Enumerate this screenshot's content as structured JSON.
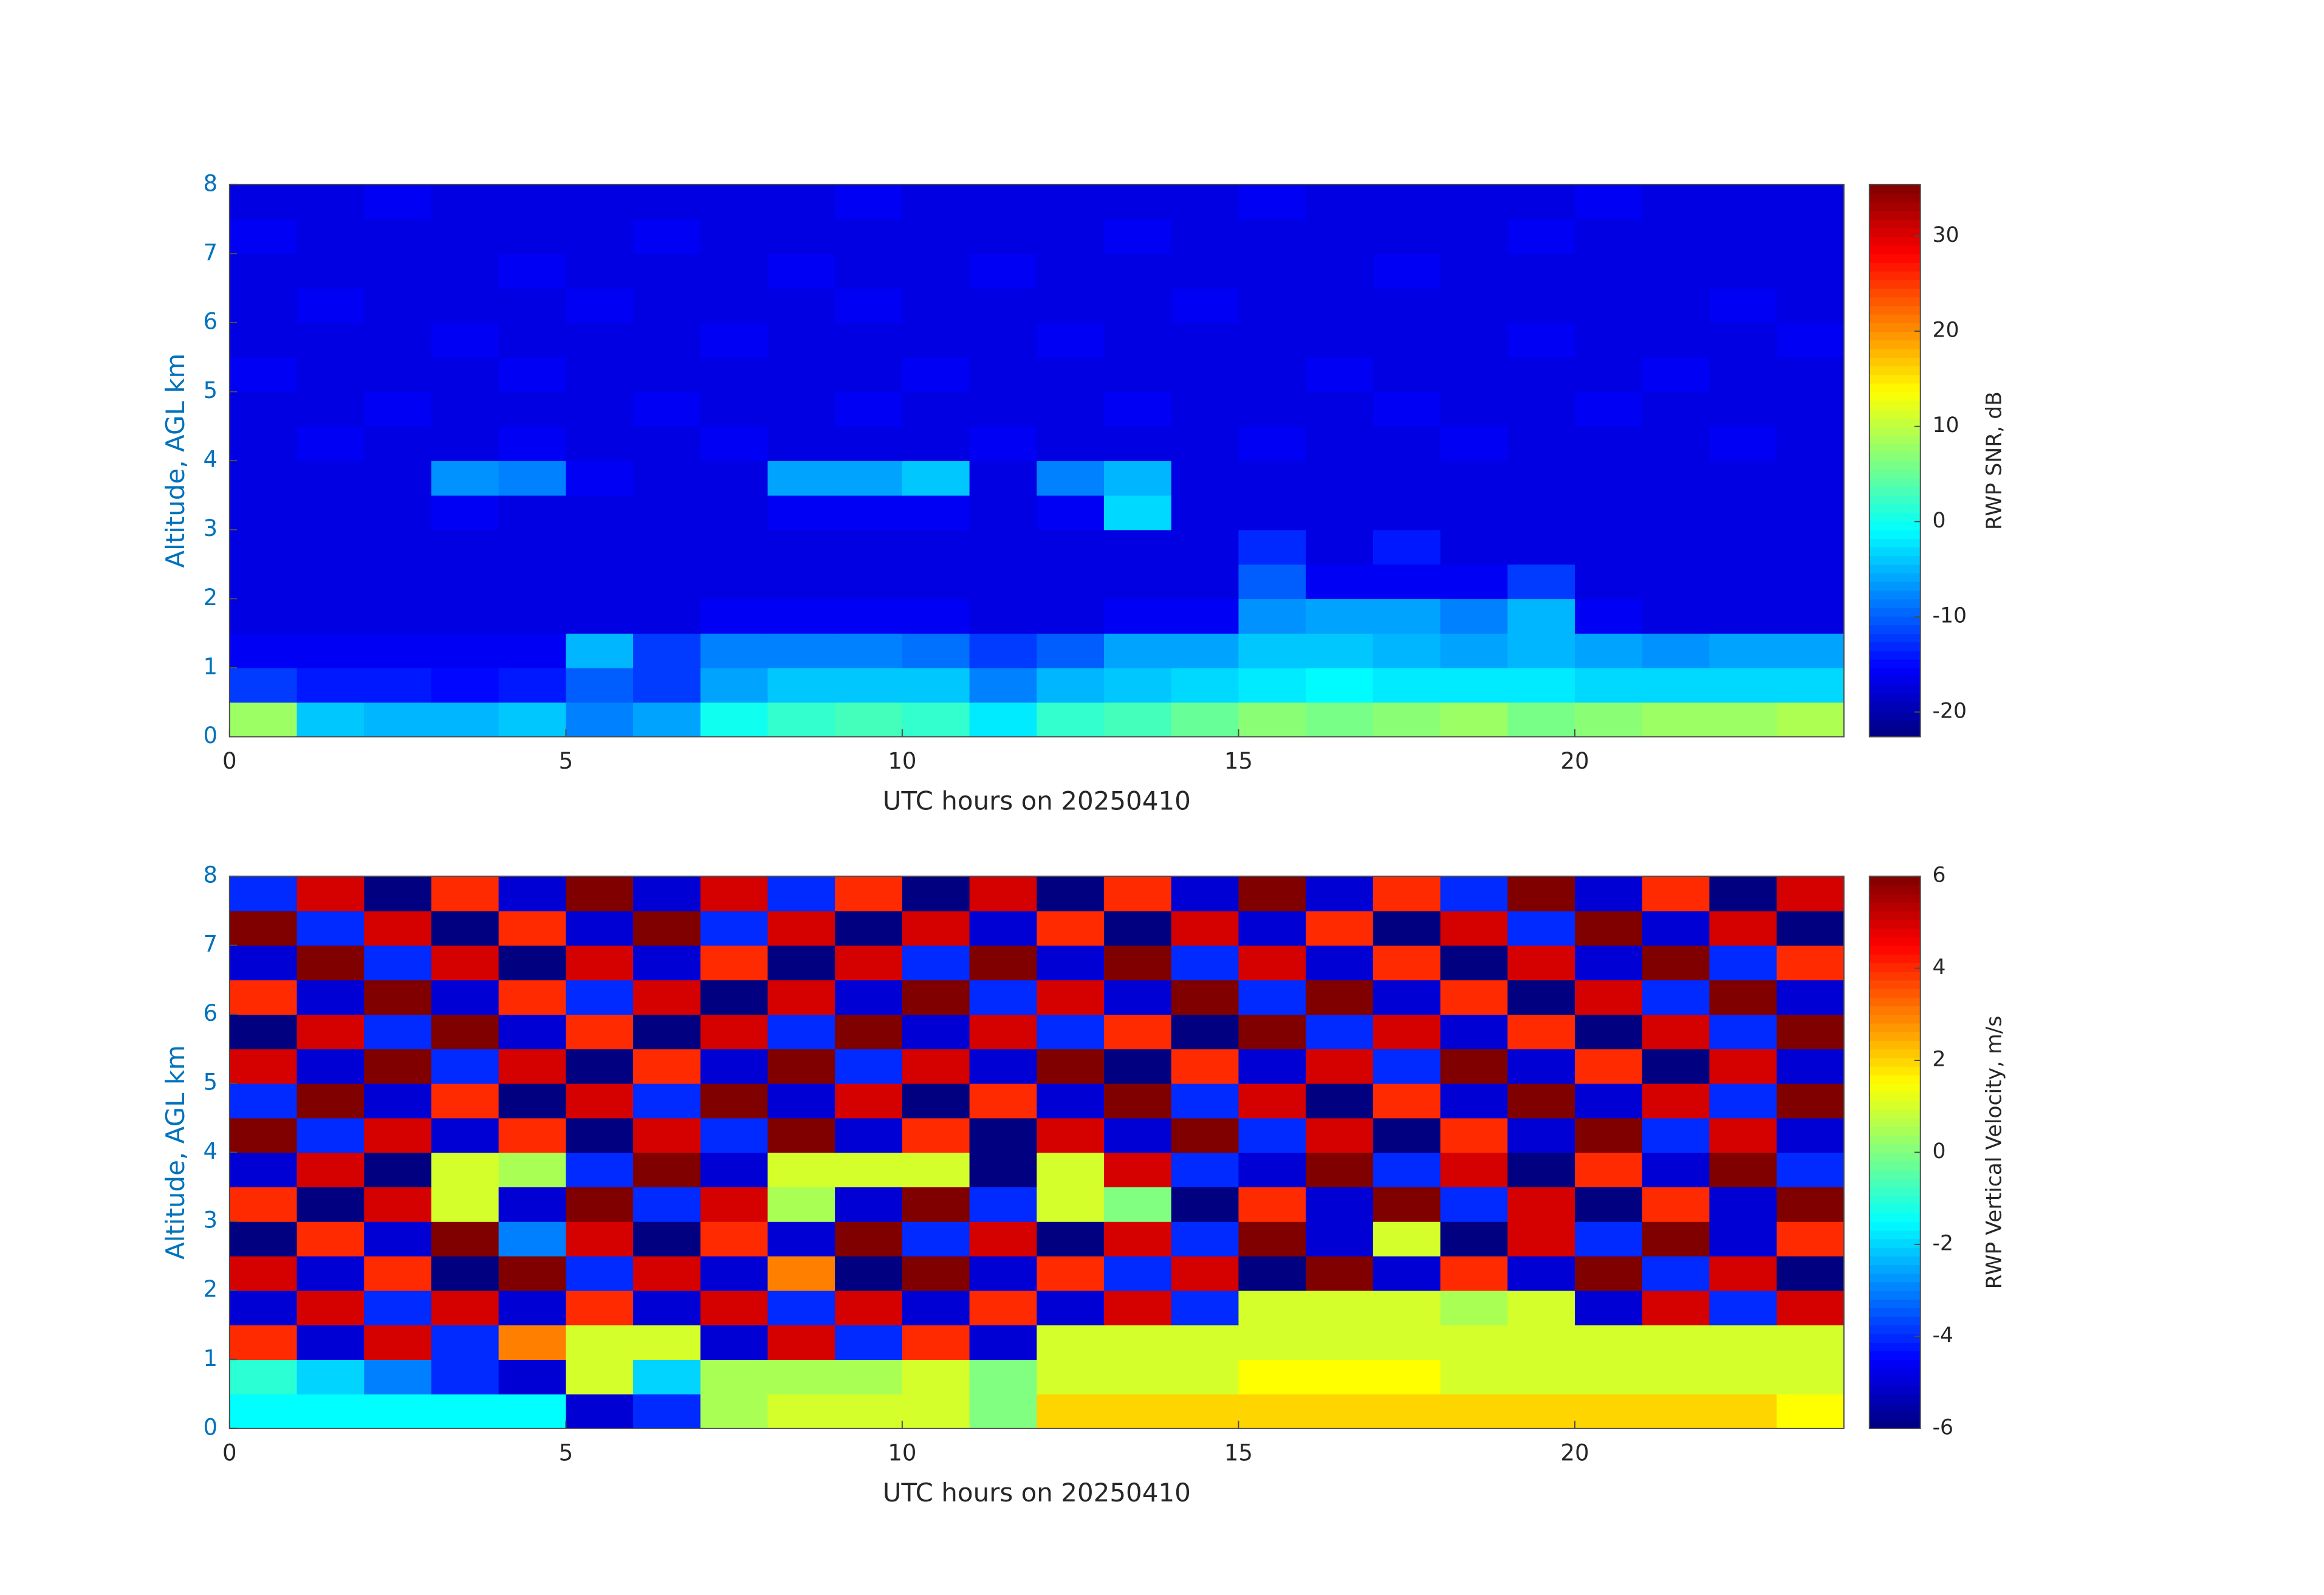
{
  "chart_data": [
    {
      "type": "heatmap",
      "colormap": "jet",
      "xlabel": "UTC hours on 20250410",
      "ylabel": "Altitude, AGL km",
      "colorbar": {
        "label": "RWP SNR, dB",
        "clim": [
          -22.6,
          35.4
        ],
        "ticks": [
          -20,
          -10,
          0,
          10,
          20,
          30
        ]
      },
      "xlim": [
        0,
        24
      ],
      "ylim": [
        0,
        8
      ],
      "xticks": [
        0,
        5,
        10,
        15,
        20
      ],
      "yticks": [
        0,
        1,
        2,
        3,
        4,
        5,
        6,
        7,
        8
      ],
      "x": [
        0.5,
        1.5,
        2.5,
        3.5,
        4.5,
        5.5,
        6.5,
        7.5,
        8.5,
        9.5,
        10.5,
        11.5,
        12.5,
        13.5,
        14.5,
        15.5,
        16.5,
        17.5,
        18.5,
        19.5,
        20.5,
        21.5,
        22.5,
        23.5
      ],
      "y": [
        0.25,
        0.75,
        1.25,
        1.75,
        2.25,
        2.75,
        3.25,
        3.75,
        4.25,
        4.75,
        5.25,
        5.75,
        6.25,
        6.75,
        7.25,
        7.75
      ],
      "z": [
        [
          8,
          -4,
          -5,
          -5,
          -4,
          -8,
          -6,
          0,
          2,
          3,
          2,
          -2,
          2,
          3,
          5,
          7,
          6,
          7,
          8,
          6,
          7,
          8,
          8,
          9
        ],
        [
          -12,
          -14,
          -14,
          -15,
          -14,
          -10,
          -12,
          -6,
          -4,
          -4,
          -4,
          -8,
          -5,
          -4,
          -3,
          -2,
          -1,
          -2,
          -2,
          -2,
          -3,
          -3,
          -3,
          -3
        ],
        [
          -16,
          -16,
          -16,
          -16,
          -16,
          -5,
          -12,
          -8,
          -8,
          -8,
          -9,
          -12,
          -10,
          -6,
          -6,
          -4,
          -4,
          -5,
          -6,
          -5,
          -6,
          -7,
          -6,
          -6
        ],
        [
          -17,
          -17,
          -17,
          -17,
          -17,
          -17,
          -17,
          -16,
          -16,
          -16,
          -16,
          -17,
          -17,
          -16,
          -16,
          -7,
          -6,
          -6,
          -8,
          -5,
          -16,
          -17,
          -17,
          -17
        ],
        [
          -17,
          -17,
          -17,
          -17,
          -17,
          -17,
          -17,
          -17,
          -17,
          -17,
          -17,
          -17,
          -17,
          -17,
          -17,
          -10,
          -16,
          -16,
          -16,
          -12,
          -17,
          -17,
          -17,
          -17
        ],
        [
          -17,
          -17,
          -17,
          -17,
          -17,
          -17,
          -17,
          -17,
          -17,
          -17,
          -17,
          -17,
          -17,
          -17,
          -17,
          -13,
          -17,
          -14,
          -17,
          -17,
          -17,
          -17,
          -17,
          -17
        ],
        [
          -17,
          -17,
          -17,
          -16,
          -17,
          -17,
          -17,
          -17,
          -16,
          -16,
          -16,
          -17,
          -16,
          -3,
          -17,
          -17,
          -17,
          -17,
          -17,
          -17,
          -17,
          -17,
          -17,
          -17
        ],
        [
          -17,
          -17,
          -17,
          -7,
          -8,
          -16,
          -17,
          -17,
          -6,
          -6,
          -4,
          -17,
          -8,
          -5,
          -17,
          -17,
          -17,
          -17,
          -17,
          -17,
          -17,
          -17,
          -17,
          -17
        ],
        [
          -17,
          -16,
          -17,
          -17,
          -16,
          -17,
          -17,
          -16,
          -17,
          -17,
          -17,
          -16,
          -17,
          -17,
          -17,
          -16,
          -17,
          -17,
          -16,
          -17,
          -17,
          -17,
          -16,
          -17
        ],
        [
          -17,
          -17,
          -16,
          -17,
          -17,
          -17,
          -16,
          -17,
          -17,
          -16,
          -17,
          -17,
          -17,
          -16,
          -17,
          -17,
          -17,
          -16,
          -17,
          -17,
          -16,
          -17,
          -17,
          -17
        ],
        [
          -16,
          -17,
          -17,
          -17,
          -16,
          -17,
          -17,
          -17,
          -17,
          -17,
          -16,
          -17,
          -17,
          -17,
          -17,
          -17,
          -16,
          -17,
          -17,
          -17,
          -17,
          -16,
          -17,
          -17
        ],
        [
          -17,
          -17,
          -17,
          -16,
          -17,
          -17,
          -17,
          -16,
          -17,
          -17,
          -17,
          -17,
          -16,
          -17,
          -17,
          -17,
          -17,
          -17,
          -17,
          -16,
          -17,
          -17,
          -17,
          -16
        ],
        [
          -17,
          -16,
          -17,
          -17,
          -17,
          -16,
          -17,
          -17,
          -17,
          -16,
          -17,
          -17,
          -17,
          -17,
          -16,
          -17,
          -17,
          -17,
          -17,
          -17,
          -17,
          -17,
          -16,
          -17
        ],
        [
          -17,
          -17,
          -17,
          -17,
          -16,
          -17,
          -17,
          -17,
          -16,
          -17,
          -17,
          -16,
          -17,
          -17,
          -17,
          -17,
          -17,
          -16,
          -17,
          -17,
          -17,
          -17,
          -17,
          -17
        ],
        [
          -16,
          -17,
          -17,
          -17,
          -17,
          -17,
          -16,
          -17,
          -17,
          -17,
          -17,
          -17,
          -17,
          -16,
          -17,
          -17,
          -17,
          -17,
          -17,
          -16,
          -17,
          -17,
          -17,
          -17
        ],
        [
          -17,
          -17,
          -16,
          -17,
          -17,
          -17,
          -17,
          -17,
          -17,
          -16,
          -17,
          -17,
          -17,
          -17,
          -17,
          -16,
          -17,
          -17,
          -17,
          -17,
          -16,
          -17,
          -17,
          -17
        ]
      ]
    },
    {
      "type": "heatmap",
      "colormap": "jet",
      "xlabel": "UTC hours on 20250410",
      "ylabel": "Altitude, AGL km",
      "colorbar": {
        "label": "RWP Vertical Velocity, m/s",
        "clim": [
          -6,
          6
        ],
        "ticks": [
          -6,
          -4,
          -2,
          0,
          2,
          4,
          6
        ]
      },
      "xlim": [
        0,
        24
      ],
      "ylim": [
        0,
        8
      ],
      "xticks": [
        0,
        5,
        10,
        15,
        20
      ],
      "yticks": [
        0,
        1,
        2,
        3,
        4,
        5,
        6,
        7,
        8
      ],
      "x": [
        0.5,
        1.5,
        2.5,
        3.5,
        4.5,
        5.5,
        6.5,
        7.5,
        8.5,
        9.5,
        10.5,
        11.5,
        12.5,
        13.5,
        14.5,
        15.5,
        16.5,
        17.5,
        18.5,
        19.5,
        20.5,
        21.5,
        22.5,
        23.5
      ],
      "y": [
        0.25,
        0.75,
        1.25,
        1.75,
        2.25,
        2.75,
        3.25,
        3.75,
        4.25,
        4.75,
        5.25,
        5.75,
        6.25,
        6.75,
        7.25,
        7.75
      ],
      "z": [
        [
          -1.5,
          -1.5,
          -1.5,
          -1.5,
          -1.5,
          -5,
          -4,
          0.5,
          1,
          1,
          1,
          0,
          2,
          2,
          2,
          2,
          2,
          2,
          2,
          2,
          2,
          2,
          2,
          1.5
        ],
        [
          -1,
          -2,
          -3,
          -4,
          -5,
          1,
          -2,
          0.5,
          0.5,
          0.5,
          1,
          0,
          1,
          1,
          1,
          1.5,
          1.5,
          1.5,
          1,
          1,
          1,
          1,
          1,
          1
        ],
        [
          4,
          -5,
          5,
          -4,
          3,
          1,
          1,
          -5,
          5,
          -4,
          4,
          -5,
          1,
          1,
          1,
          1,
          1,
          1,
          1,
          1,
          1,
          1,
          1,
          1
        ],
        [
          -5,
          5,
          -4,
          5,
          -5,
          4,
          -5,
          5,
          -4,
          5,
          -5,
          4,
          -5,
          5,
          -4,
          1,
          1,
          1,
          0.5,
          1,
          -5,
          5,
          -4,
          5
        ],
        [
          5,
          -5,
          4,
          -6,
          6,
          -4,
          5,
          -5,
          3,
          -6,
          6,
          -5,
          4,
          -4,
          5,
          -6,
          6,
          -5,
          4,
          -5,
          6,
          -4,
          5,
          -6
        ],
        [
          -6,
          4,
          -5,
          6,
          -3,
          5,
          -6,
          4,
          -5,
          6,
          -4,
          5,
          -6,
          5,
          -4,
          6,
          -5,
          1,
          -6,
          5,
          -4,
          6,
          -5,
          4
        ],
        [
          4,
          -6,
          5,
          1,
          -5,
          6,
          -4,
          5,
          0.5,
          -5,
          6,
          -4,
          1,
          0,
          -6,
          4,
          -5,
          6,
          -4,
          5,
          -6,
          4,
          -5,
          6
        ],
        [
          -5,
          5,
          -6,
          1,
          0.5,
          -4,
          6,
          -5,
          1,
          1,
          1,
          -6,
          1,
          5,
          -4,
          -5,
          6,
          -4,
          5,
          -6,
          4,
          -5,
          6,
          -4
        ],
        [
          6,
          -4,
          5,
          -5,
          4,
          -6,
          5,
          -4,
          6,
          -5,
          4,
          -6,
          5,
          -5,
          6,
          -4,
          5,
          -6,
          4,
          -5,
          6,
          -4,
          5,
          -5
        ],
        [
          -4,
          6,
          -5,
          4,
          -6,
          5,
          -4,
          6,
          -5,
          5,
          -6,
          4,
          -5,
          6,
          -4,
          5,
          -6,
          4,
          -5,
          6,
          -5,
          5,
          -4,
          6
        ],
        [
          5,
          -5,
          6,
          -4,
          5,
          -6,
          4,
          -5,
          6,
          -4,
          5,
          -5,
          6,
          -6,
          4,
          -5,
          5,
          -4,
          6,
          -5,
          4,
          -6,
          5,
          -5
        ],
        [
          -6,
          5,
          -4,
          6,
          -5,
          4,
          -6,
          5,
          -4,
          6,
          -5,
          5,
          -4,
          4,
          -6,
          6,
          -4,
          5,
          -5,
          4,
          -6,
          5,
          -4,
          6
        ],
        [
          4,
          -5,
          6,
          -5,
          4,
          -4,
          5,
          -6,
          5,
          -5,
          6,
          -4,
          5,
          -5,
          6,
          -4,
          6,
          -5,
          4,
          -6,
          5,
          -4,
          6,
          -5
        ],
        [
          -5,
          6,
          -4,
          5,
          -6,
          5,
          -5,
          4,
          -6,
          5,
          -4,
          6,
          -5,
          6,
          -4,
          5,
          -5,
          4,
          -6,
          5,
          -5,
          6,
          -4,
          4
        ],
        [
          6,
          -4,
          5,
          -6,
          4,
          -5,
          6,
          -4,
          5,
          -6,
          5,
          -5,
          4,
          -6,
          5,
          -5,
          4,
          -6,
          5,
          -4,
          6,
          -5,
          5,
          -6
        ],
        [
          -4,
          5,
          -6,
          4,
          -5,
          6,
          -5,
          5,
          -4,
          4,
          -6,
          5,
          -6,
          4,
          -5,
          6,
          -5,
          4,
          -4,
          6,
          -5,
          4,
          -6,
          5
        ]
      ]
    }
  ]
}
